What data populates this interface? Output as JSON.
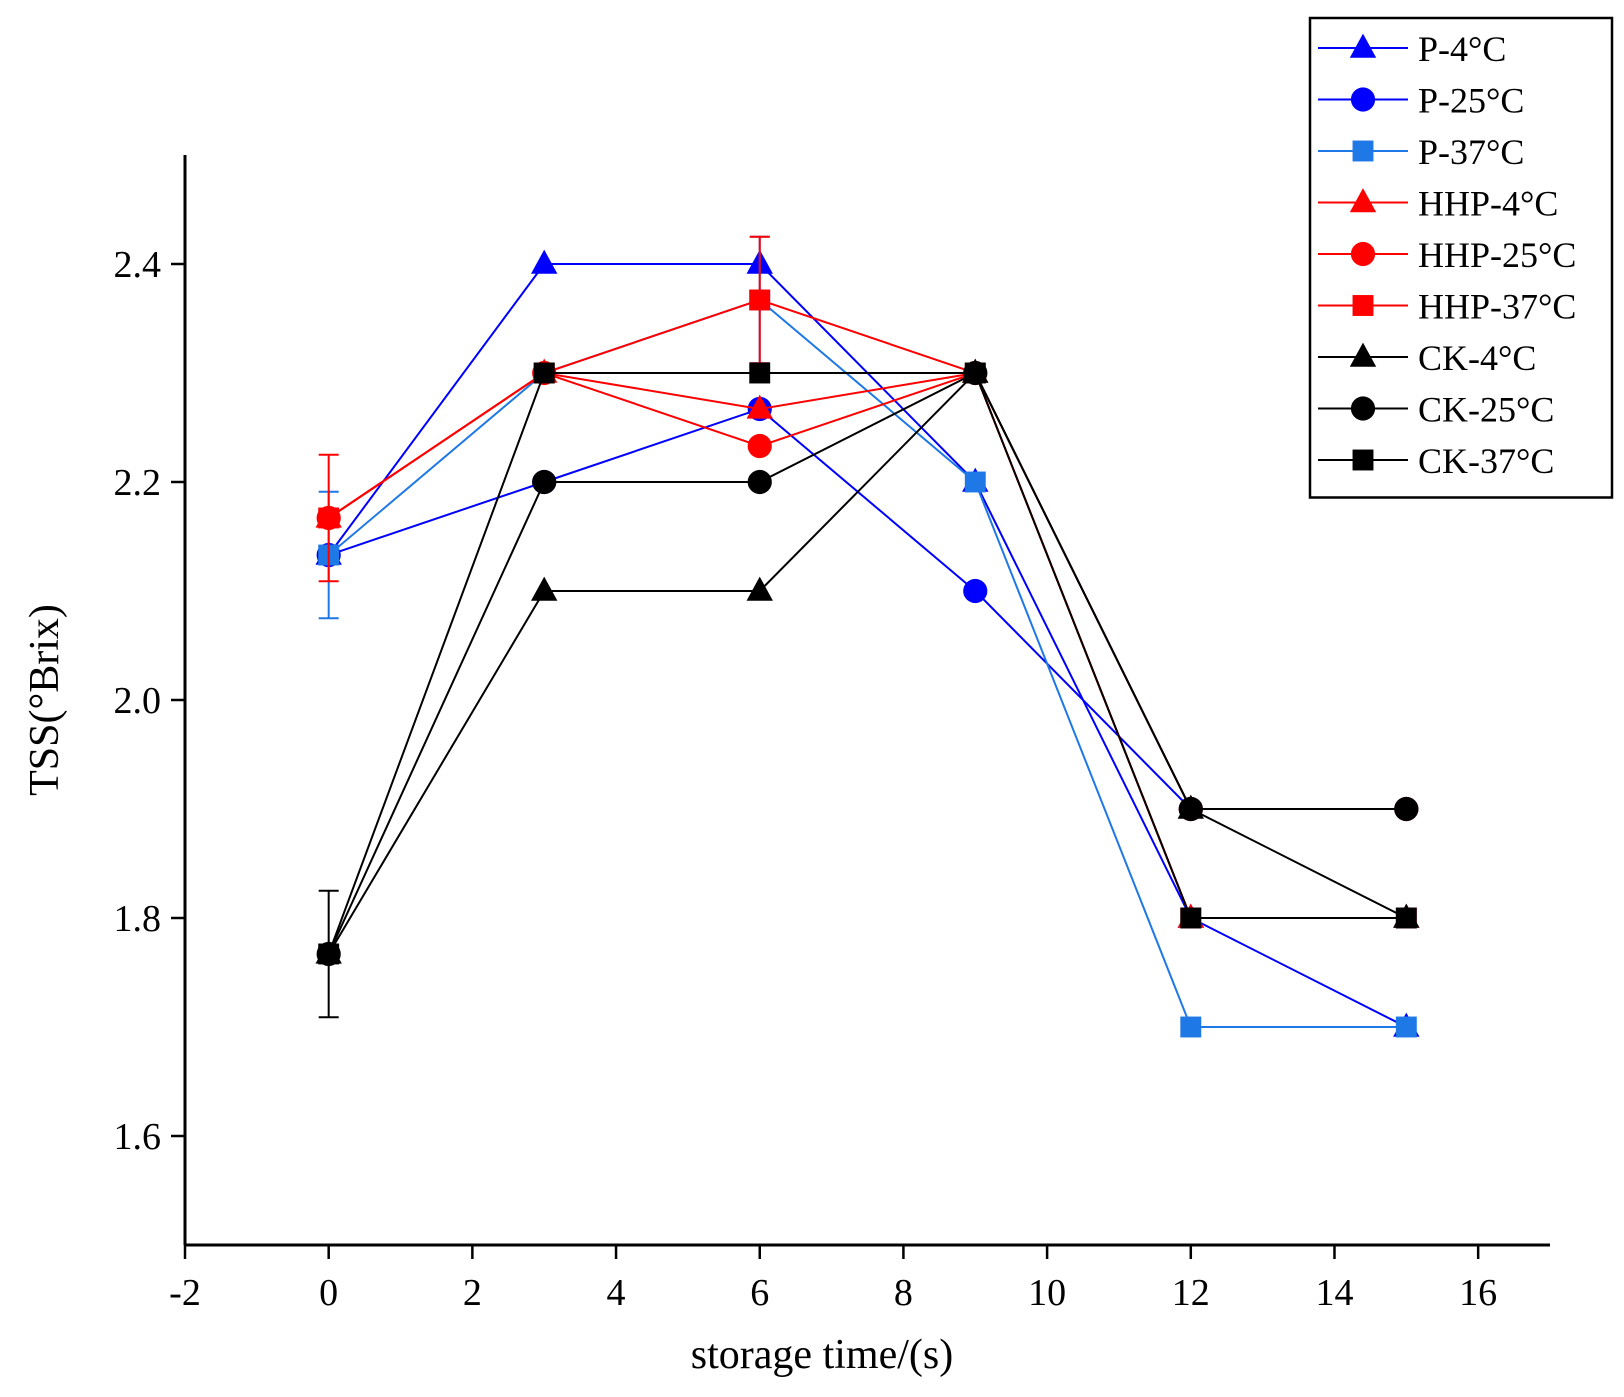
{
  "chart_data": {
    "type": "line",
    "xlabel": "storage time/(s)",
    "ylabel": "TSS(°Brix)",
    "xlim": [
      -2,
      17
    ],
    "ylim": [
      1.5,
      2.5
    ],
    "xticks": [
      -2,
      0,
      2,
      4,
      6,
      8,
      10,
      12,
      14,
      16
    ],
    "yticks": [
      1.6,
      1.8,
      2.0,
      2.2,
      2.4
    ],
    "xtick_labels": [
      "-2",
      "0",
      "2",
      "4",
      "6",
      "8",
      "10",
      "12",
      "14",
      "16"
    ],
    "ytick_labels": [
      "1.6",
      "1.8",
      "2.0",
      "2.2",
      "2.4"
    ],
    "legend_position": "top-right",
    "grid": false,
    "series": [
      {
        "name": "P-4°C",
        "color": "#0000ff",
        "marker": "triangle",
        "x": [
          0,
          3,
          6,
          9,
          12,
          15
        ],
        "y": [
          2.133,
          2.4,
          2.4,
          2.2,
          1.8,
          1.7
        ]
      },
      {
        "name": "P-25°C",
        "color": "#0000ff",
        "marker": "circle",
        "x": [
          0,
          3,
          6,
          9,
          12,
          15
        ],
        "y": [
          2.133,
          2.2,
          2.267,
          2.1,
          1.9,
          1.9
        ]
      },
      {
        "name": "P-37°C",
        "color": "#1e78e6",
        "marker": "square",
        "x": [
          0,
          3,
          6,
          9,
          12,
          15
        ],
        "y": [
          2.133,
          2.3,
          2.367,
          2.2,
          1.7,
          1.7
        ],
        "error": [
          0.058,
          0,
          0.058,
          0,
          0,
          0
        ]
      },
      {
        "name": "HHP-4°C",
        "color": "#ff0000",
        "marker": "triangle",
        "x": [
          0,
          3,
          6,
          9,
          12,
          15
        ],
        "y": [
          2.167,
          2.3,
          2.267,
          2.3,
          1.8,
          1.8
        ]
      },
      {
        "name": "HHP-25°C",
        "color": "#ff0000",
        "marker": "circle",
        "x": [
          0,
          3,
          6,
          9,
          12,
          15
        ],
        "y": [
          2.167,
          2.3,
          2.233,
          2.3,
          1.9,
          1.9
        ]
      },
      {
        "name": "HHP-37°C",
        "color": "#ff0000",
        "marker": "square",
        "x": [
          0,
          3,
          6,
          9,
          12,
          15
        ],
        "y": [
          2.167,
          2.3,
          2.367,
          2.3,
          1.8,
          1.8
        ],
        "error": [
          0.058,
          0,
          0.058,
          0,
          0,
          0
        ]
      },
      {
        "name": "CK-4°C",
        "color": "#000000",
        "marker": "triangle",
        "x": [
          0,
          3,
          6,
          9,
          12,
          15
        ],
        "y": [
          1.767,
          2.1,
          2.1,
          2.3,
          1.9,
          1.8
        ]
      },
      {
        "name": "CK-25°C",
        "color": "#000000",
        "marker": "circle",
        "x": [
          0,
          3,
          6,
          9,
          12,
          15
        ],
        "y": [
          1.767,
          2.2,
          2.2,
          2.3,
          1.9,
          1.9
        ]
      },
      {
        "name": "CK-37°C",
        "color": "#000000",
        "marker": "square",
        "x": [
          0,
          3,
          6,
          9,
          12,
          15
        ],
        "y": [
          1.767,
          2.3,
          2.3,
          2.3,
          1.8,
          1.8
        ],
        "error": [
          0.058,
          0,
          0,
          0,
          0,
          0
        ]
      }
    ]
  }
}
